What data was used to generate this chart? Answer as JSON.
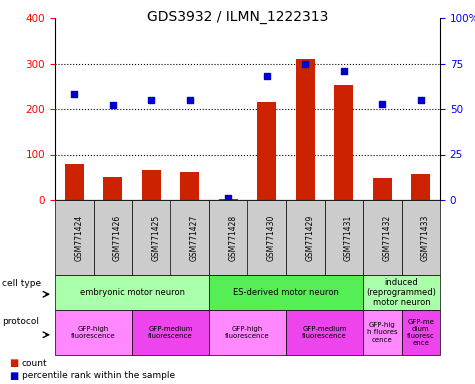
{
  "title": "GDS3932 / ILMN_1222313",
  "samples": [
    "GSM771424",
    "GSM771426",
    "GSM771425",
    "GSM771427",
    "GSM771428",
    "GSM771430",
    "GSM771429",
    "GSM771431",
    "GSM771432",
    "GSM771433"
  ],
  "counts": [
    80,
    50,
    65,
    62,
    3,
    215,
    310,
    252,
    48,
    58
  ],
  "percentiles": [
    58,
    52,
    55,
    55,
    1,
    68,
    75,
    71,
    53,
    55
  ],
  "ylim_left": [
    0,
    400
  ],
  "ylim_right": [
    0,
    100
  ],
  "yticks_left": [
    0,
    100,
    200,
    300,
    400
  ],
  "yticks_right": [
    0,
    25,
    50,
    75,
    100
  ],
  "yticklabels_right": [
    "0",
    "25",
    "50",
    "75",
    "100%"
  ],
  "bar_color": "#cc2200",
  "scatter_color": "#0000cc",
  "cell_type_groups": [
    {
      "label": "embryonic motor neuron",
      "start": 0,
      "end": 3,
      "color": "#aaffaa"
    },
    {
      "label": "ES-derived motor neuron",
      "start": 4,
      "end": 7,
      "color": "#55ee55"
    },
    {
      "label": "induced\n(reprogrammed)\nmotor neuron",
      "start": 8,
      "end": 9,
      "color": "#aaffaa"
    }
  ],
  "protocol_groups": [
    {
      "label": "GFP-high\nfluorescence",
      "start": 0,
      "end": 1,
      "color": "#ff88ff"
    },
    {
      "label": "GFP-medium\nfluorescence",
      "start": 2,
      "end": 3,
      "color": "#ee44ee"
    },
    {
      "label": "GFP-high\nfluorescence",
      "start": 4,
      "end": 5,
      "color": "#ff88ff"
    },
    {
      "label": "GFP-medium\nfluorescence",
      "start": 6,
      "end": 7,
      "color": "#ee44ee"
    },
    {
      "label": "GFP-hig\nh fluores\ncence",
      "start": 8,
      "end": 8,
      "color": "#ff88ff"
    },
    {
      "label": "GFP-me\ndium\nfluoresc\nence",
      "start": 9,
      "end": 9,
      "color": "#ee44ee"
    }
  ],
  "legend_count_label": "count",
  "legend_percentile_label": "percentile rank within the sample",
  "cell_type_label": "cell type",
  "protocol_label": "protocol",
  "tick_area_color": "#cccccc",
  "fig_width": 4.75,
  "fig_height": 3.84,
  "dpi": 100
}
